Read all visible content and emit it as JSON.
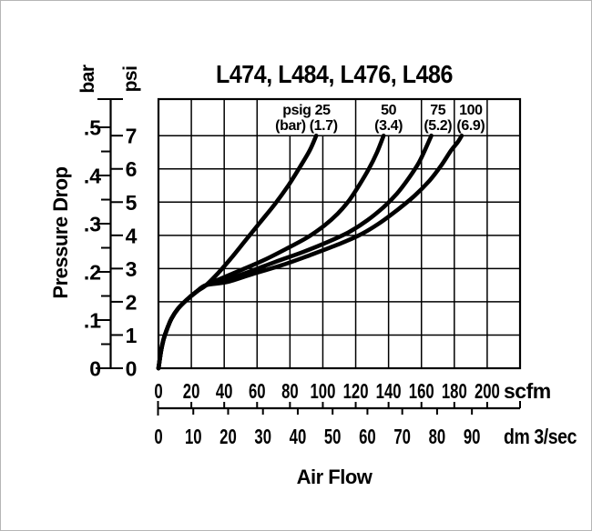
{
  "chart_data": {
    "type": "line",
    "title": "L474, L484, L476, L486",
    "xlabel": "Air Flow",
    "ylabel": "Pressure Drop",
    "grid": true,
    "x_axis_scfm": {
      "unit": "scfm",
      "ticks": [
        0,
        20,
        40,
        60,
        80,
        100,
        120,
        140,
        160,
        180,
        200
      ],
      "axis_max": 220
    },
    "x_axis_dm3s": {
      "unit": "dm 3/sec",
      "ticks": [
        0,
        10,
        20,
        30,
        40,
        50,
        60,
        70,
        80,
        90
      ],
      "scfm_per_dm3s": 2.119
    },
    "y_axis_psi": {
      "unit": "psi",
      "ticks": [
        0,
        1,
        2,
        3,
        4,
        5,
        6,
        7
      ],
      "axis_max": 8.1
    },
    "y_axis_bar": {
      "unit": "bar",
      "tick_values": [
        0,
        0.1,
        0.2,
        0.3,
        0.4,
        0.5
      ],
      "tick_labels": [
        "0",
        ".1",
        ".2",
        ".3",
        ".4",
        ".5"
      ],
      "minor_step": 0.05,
      "psi_per_bar": 14.5
    },
    "series": [
      {
        "name": "25 psig",
        "inlet_pressure_psig": 25,
        "inlet_pressure_bar": 1.7,
        "label_line1": "psig 25",
        "label_line2": "(bar) (1.7)",
        "label_span_scfm": [
          60,
          120
        ],
        "points": [
          [
            0,
            0
          ],
          [
            1.5,
            0.5
          ],
          [
            3,
            0.85
          ],
          [
            5,
            1.15
          ],
          [
            8,
            1.5
          ],
          [
            12,
            1.8
          ],
          [
            17,
            2.05
          ],
          [
            23,
            2.3
          ],
          [
            29,
            2.5
          ],
          [
            36,
            2.85
          ],
          [
            44,
            3.3
          ],
          [
            53,
            3.85
          ],
          [
            62,
            4.4
          ],
          [
            71,
            4.95
          ],
          [
            79,
            5.5
          ],
          [
            86,
            6.05
          ],
          [
            92,
            6.55
          ],
          [
            96,
            7.0
          ]
        ]
      },
      {
        "name": "50 psig",
        "inlet_pressure_psig": 50,
        "inlet_pressure_bar": 3.4,
        "label_line1": "50",
        "label_line2": "(3.4)",
        "label_span_scfm": [
          120,
          160
        ],
        "points": [
          [
            0,
            0
          ],
          [
            1.5,
            0.5
          ],
          [
            3,
            0.85
          ],
          [
            5,
            1.15
          ],
          [
            8,
            1.5
          ],
          [
            12,
            1.8
          ],
          [
            17,
            2.05
          ],
          [
            23,
            2.3
          ],
          [
            29,
            2.5
          ],
          [
            38,
            2.7
          ],
          [
            50,
            2.95
          ],
          [
            64,
            3.25
          ],
          [
            78,
            3.6
          ],
          [
            91,
            3.95
          ],
          [
            101,
            4.3
          ],
          [
            109,
            4.65
          ],
          [
            116,
            5.05
          ],
          [
            122,
            5.5
          ],
          [
            128,
            6.0
          ],
          [
            133,
            6.5
          ],
          [
            137,
            7.0
          ]
        ]
      },
      {
        "name": "75 psig",
        "inlet_pressure_psig": 75,
        "inlet_pressure_bar": 5.2,
        "label_line1": "75",
        "label_line2": "(5.2)",
        "label_span_scfm": [
          160,
          180
        ],
        "points": [
          [
            0,
            0
          ],
          [
            1.5,
            0.5
          ],
          [
            3,
            0.85
          ],
          [
            5,
            1.15
          ],
          [
            8,
            1.5
          ],
          [
            12,
            1.8
          ],
          [
            17,
            2.05
          ],
          [
            23,
            2.3
          ],
          [
            29,
            2.5
          ],
          [
            40,
            2.65
          ],
          [
            55,
            2.9
          ],
          [
            71,
            3.2
          ],
          [
            88,
            3.5
          ],
          [
            103,
            3.8
          ],
          [
            116,
            4.1
          ],
          [
            127,
            4.45
          ],
          [
            137,
            4.85
          ],
          [
            145,
            5.25
          ],
          [
            152,
            5.7
          ],
          [
            158,
            6.15
          ],
          [
            162,
            6.55
          ],
          [
            166,
            7.0
          ]
        ]
      },
      {
        "name": "100 psig",
        "inlet_pressure_psig": 100,
        "inlet_pressure_bar": 6.9,
        "label_line1": "100",
        "label_line2": "(6.9)",
        "label_span_scfm": [
          180,
          200
        ],
        "points": [
          [
            0,
            0
          ],
          [
            1.5,
            0.5
          ],
          [
            3,
            0.85
          ],
          [
            5,
            1.15
          ],
          [
            8,
            1.5
          ],
          [
            12,
            1.8
          ],
          [
            17,
            2.05
          ],
          [
            23,
            2.3
          ],
          [
            29,
            2.5
          ],
          [
            42,
            2.6
          ],
          [
            58,
            2.85
          ],
          [
            75,
            3.1
          ],
          [
            92,
            3.4
          ],
          [
            108,
            3.7
          ],
          [
            122,
            4.0
          ],
          [
            134,
            4.35
          ],
          [
            145,
            4.75
          ],
          [
            156,
            5.2
          ],
          [
            165,
            5.65
          ],
          [
            172,
            6.1
          ],
          [
            178,
            6.55
          ],
          [
            182,
            6.8
          ],
          [
            184.5,
            7.0
          ]
        ]
      }
    ]
  }
}
